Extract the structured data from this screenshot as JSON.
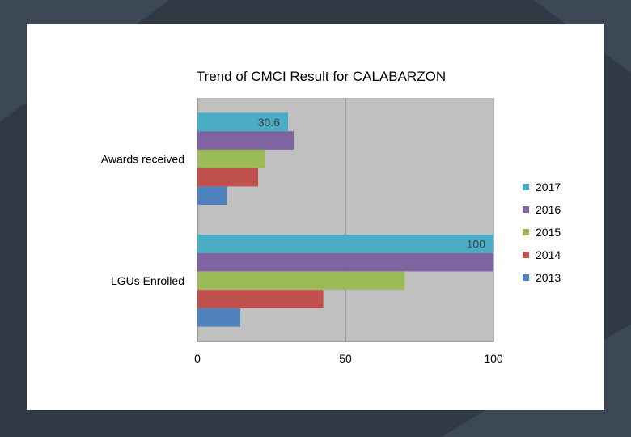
{
  "background": {
    "base_color": "#2f3a45",
    "accent_color": "#3c4854",
    "slide_color": "#ffffff"
  },
  "chart_data": {
    "type": "bar",
    "orientation": "horizontal",
    "title": "Trend of CMCI Result for CALABARZON",
    "categories": [
      "LGUs Enrolled",
      "Awards received"
    ],
    "series": [
      {
        "name": "2013",
        "color": "#4f81bd",
        "values": [
          14.5,
          10
        ]
      },
      {
        "name": "2014",
        "color": "#c0504d",
        "values": [
          42.5,
          20.5
        ]
      },
      {
        "name": "2015",
        "color": "#9bbb59",
        "values": [
          70,
          23
        ]
      },
      {
        "name": "2016",
        "color": "#8064a2",
        "values": [
          100,
          32.5
        ]
      },
      {
        "name": "2017",
        "color": "#4bacc6",
        "values": [
          100,
          30.6
        ]
      }
    ],
    "data_labels": [
      {
        "series": "2017",
        "category": "Awards received",
        "text": "30.6"
      },
      {
        "series": "2017",
        "category": "LGUs Enrolled",
        "text": "100"
      }
    ],
    "xlim": [
      0,
      100
    ],
    "x_ticks": [
      0,
      50,
      100
    ],
    "x_tick_labels": [
      "0",
      "50",
      "100"
    ],
    "xlabel": "",
    "ylabel": "",
    "legend_position": "right",
    "legend_order": [
      "2017",
      "2016",
      "2015",
      "2014",
      "2013"
    ],
    "grid": true,
    "plot_background": "#c0c0c0"
  }
}
